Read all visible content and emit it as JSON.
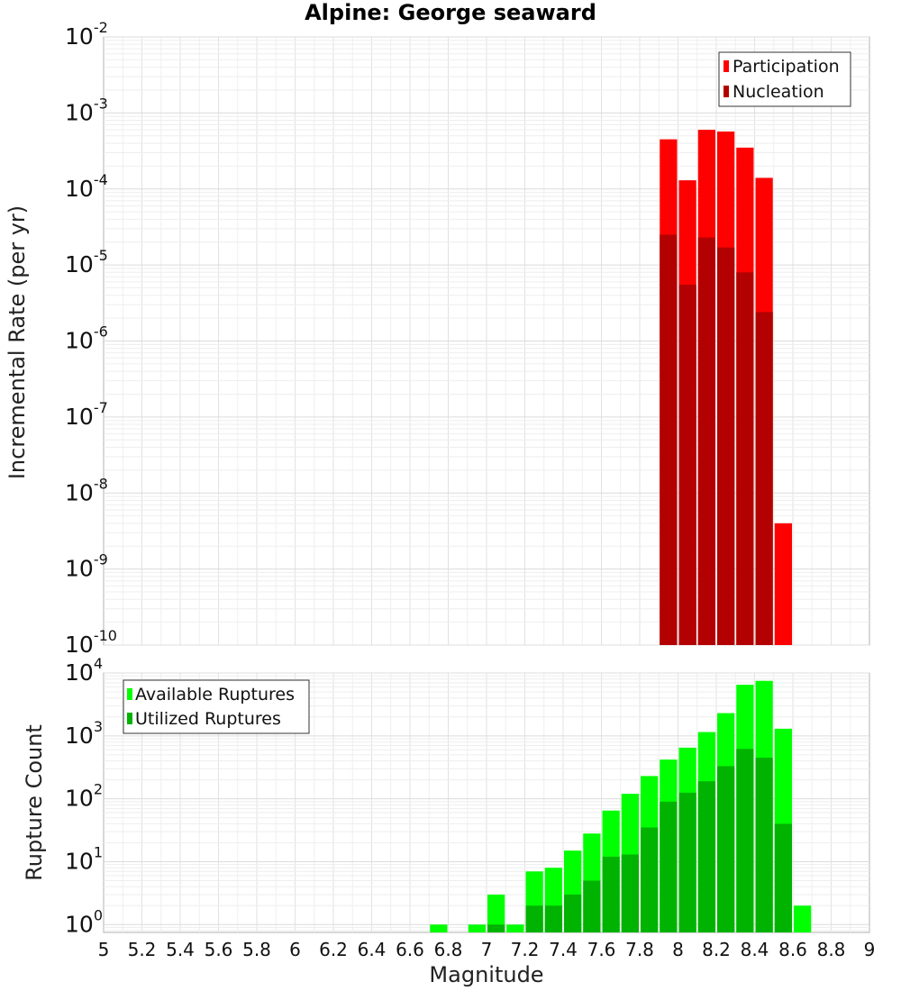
{
  "chart_data": [
    {
      "type": "bar",
      "title": "Alpine: George seaward",
      "xlabel": "Magnitude",
      "ylabel": "Incremental Rate (per yr)",
      "xlim": [
        5,
        9
      ],
      "ylim": [
        1e-10,
        0.01
      ],
      "yscale": "log",
      "grid": true,
      "legend_position": "top-right",
      "bar_width": 0.1,
      "colors": {
        "Participation": "#ff0000",
        "Nucleation": "#b30000"
      },
      "y_tick_labels": [
        {
          "value": 1e-10,
          "base": "10",
          "exp": "-10"
        },
        {
          "value": 1e-09,
          "base": "10",
          "exp": "-9"
        },
        {
          "value": 1e-08,
          "base": "10",
          "exp": "-8"
        },
        {
          "value": 1e-07,
          "base": "10",
          "exp": "-7"
        },
        {
          "value": 1e-06,
          "base": "10",
          "exp": "-6"
        },
        {
          "value": 1e-05,
          "base": "10",
          "exp": "-5"
        },
        {
          "value": 0.0001,
          "base": "10",
          "exp": "-4"
        },
        {
          "value": 0.001,
          "base": "10",
          "exp": "-3"
        },
        {
          "value": 0.01,
          "base": "10",
          "exp": "-2"
        }
      ],
      "series": [
        {
          "name": "Participation",
          "x": [
            7.95,
            8.05,
            8.15,
            8.25,
            8.35,
            8.45,
            8.55
          ],
          "values": [
            0.00045,
            0.00013,
            0.0006,
            0.00057,
            0.00035,
            0.00014,
            4e-09
          ]
        },
        {
          "name": "Nucleation",
          "x": [
            7.95,
            8.05,
            8.15,
            8.25,
            8.35,
            8.45
          ],
          "values": [
            2.5e-05,
            5.5e-06,
            2.3e-05,
            1.7e-05,
            8e-06,
            2.4e-06
          ]
        }
      ]
    },
    {
      "type": "bar",
      "xlabel": "Magnitude",
      "ylabel": "Rupture Count",
      "xlim": [
        5,
        9
      ],
      "ylim": [
        0.75,
        10000
      ],
      "yscale": "log",
      "grid": true,
      "legend_position": "top-left",
      "bar_width": 0.1,
      "colors": {
        "Available Ruptures": "#00ff00",
        "Utilized Ruptures": "#00b300"
      },
      "x_tick_labels": [
        "5",
        "5.2",
        "5.4",
        "5.6",
        "5.8",
        "6",
        "6.2",
        "6.4",
        "6.6",
        "6.8",
        "7",
        "7.2",
        "7.4",
        "7.6",
        "7.8",
        "8",
        "8.2",
        "8.4",
        "8.6",
        "8.8",
        "9"
      ],
      "y_tick_labels": [
        {
          "value": 1,
          "base": "10",
          "exp": "0"
        },
        {
          "value": 10,
          "base": "10",
          "exp": "1"
        },
        {
          "value": 100,
          "base": "10",
          "exp": "2"
        },
        {
          "value": 1000,
          "base": "10",
          "exp": "3"
        },
        {
          "value": 10000,
          "base": "10",
          "exp": "4"
        }
      ],
      "series": [
        {
          "name": "Available Ruptures",
          "x": [
            6.75,
            6.95,
            7.05,
            7.15,
            7.25,
            7.35,
            7.45,
            7.55,
            7.65,
            7.75,
            7.85,
            7.95,
            8.05,
            8.15,
            8.25,
            8.35,
            8.45,
            8.55,
            8.65
          ],
          "values": [
            1,
            1,
            3,
            1,
            7,
            8,
            15,
            28,
            65,
            120,
            230,
            420,
            650,
            1150,
            2300,
            6500,
            7500,
            1300,
            2
          ]
        },
        {
          "name": "Utilized Ruptures",
          "x": [
            7.05,
            7.25,
            7.35,
            7.45,
            7.55,
            7.65,
            7.75,
            7.85,
            7.95,
            8.05,
            8.15,
            8.25,
            8.35,
            8.45,
            8.55
          ],
          "values": [
            1,
            2,
            2,
            3,
            5,
            12,
            13,
            35,
            90,
            125,
            190,
            330,
            620,
            450,
            40
          ]
        }
      ]
    }
  ]
}
